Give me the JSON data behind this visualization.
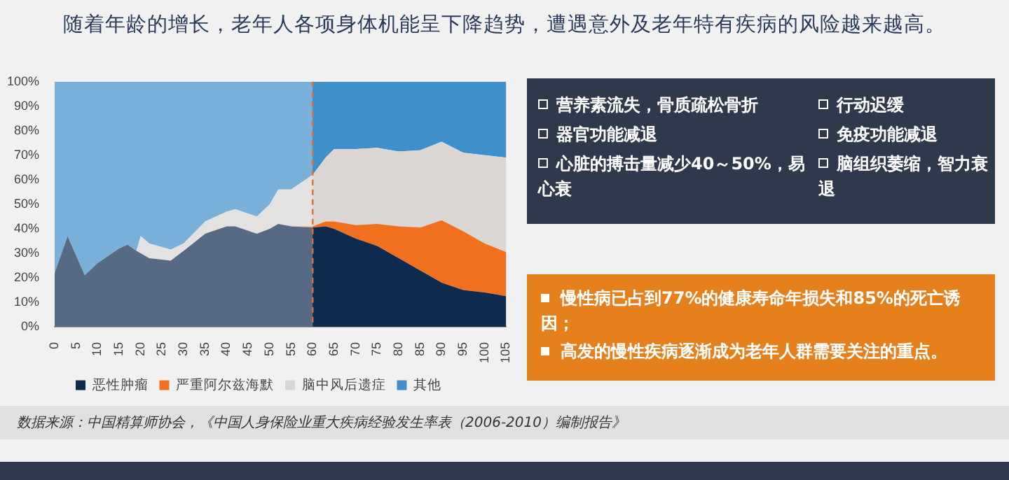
{
  "chart_data": {
    "type": "area",
    "stacked": true,
    "title": "随着年龄的增长，老年人各项身体机能呈下降趋势，遭遇意外及老年特有疾病的风险越来越高。",
    "x": [
      0,
      3,
      7,
      10,
      15,
      17,
      19,
      20,
      22,
      27,
      30,
      35,
      40,
      42,
      47,
      50,
      52,
      55,
      60,
      63,
      65,
      70,
      75,
      80,
      85,
      90,
      95,
      100,
      105
    ],
    "series": [
      {
        "name": "恶性肿瘤",
        "color": "#0e2a4f",
        "values": [
          22,
          37,
          21,
          26,
          32,
          33.5,
          31,
          30,
          28,
          27,
          31,
          38,
          41,
          41,
          38,
          40,
          42,
          41,
          40.5,
          41,
          40,
          36,
          33,
          28,
          23,
          18,
          15,
          14,
          12.5
        ]
      },
      {
        "name": "严重阿尔兹海默",
        "color": "#f07020",
        "values": [
          0,
          0,
          0,
          0,
          0,
          0,
          0,
          0,
          0,
          0,
          0,
          0,
          0,
          0,
          0,
          0,
          0,
          0,
          0.5,
          2,
          3,
          5.5,
          9,
          13,
          17.5,
          25.5,
          24,
          20,
          18
        ]
      },
      {
        "name": "脑中风后遗症",
        "color": "#d9d6d4",
        "values": [
          0,
          0,
          0,
          0,
          0,
          0,
          0,
          7,
          6,
          4.5,
          3,
          5,
          6,
          7,
          7,
          10,
          14,
          15,
          21,
          26,
          29.5,
          31,
          31,
          30.5,
          31.5,
          32,
          32,
          36,
          38.5
        ]
      },
      {
        "name": "其他",
        "color": "#3f8fca",
        "values": [
          78,
          63,
          79,
          74,
          68,
          66.5,
          69,
          63,
          66,
          68.5,
          66,
          57,
          53,
          52,
          55,
          50,
          44,
          44,
          38,
          31,
          27.5,
          27.5,
          27,
          28.5,
          28,
          24.5,
          29,
          30,
          31
        ]
      }
    ],
    "xlim": [
      0,
      105
    ],
    "xticks": [
      0,
      5,
      10,
      15,
      20,
      25,
      30,
      35,
      40,
      45,
      50,
      55,
      60,
      65,
      70,
      75,
      80,
      85,
      90,
      95,
      100,
      105
    ],
    "ylim": [
      0,
      100
    ],
    "yticks": [
      {
        "value": 0,
        "label": "0%"
      },
      {
        "value": 10,
        "label": "10%"
      },
      {
        "value": 20,
        "label": "20%"
      },
      {
        "value": 30,
        "label": "30%"
      },
      {
        "value": 40,
        "label": "40%"
      },
      {
        "value": 50,
        "label": "50%"
      },
      {
        "value": 60,
        "label": "60%"
      },
      {
        "value": 70,
        "label": "70%"
      },
      {
        "value": 80,
        "label": "80%"
      },
      {
        "value": 90,
        "label": "90%"
      },
      {
        "value": 100,
        "label": "100%"
      }
    ],
    "grid": false,
    "legend": "bottom",
    "ref_lines": [
      {
        "axis": "x",
        "value": 60,
        "color": "#e07030",
        "line_style": "dashed"
      }
    ],
    "bands": [
      {
        "axis": "x",
        "from": 0,
        "to": 60,
        "color": "#ffffff"
      }
    ],
    "annotations": [
      "营养素流失，骨质疏松骨折",
      "器官功能减退",
      "心脏的搏击量减少40～50%，易心衰",
      "行动迟缓",
      "免疫功能减退",
      "脑组织萎缩，智力衰退",
      "慢性病已占到77%的健康寿命年损失和85%的死亡诱因；",
      "高发的慢性疾病逐渐成为老年人群需要关注的重点。",
      "数据来源：中国精算师协会，《中国人身保险业重大疾病经验发生率表（2006-2010）编制报告》"
    ]
  }
}
